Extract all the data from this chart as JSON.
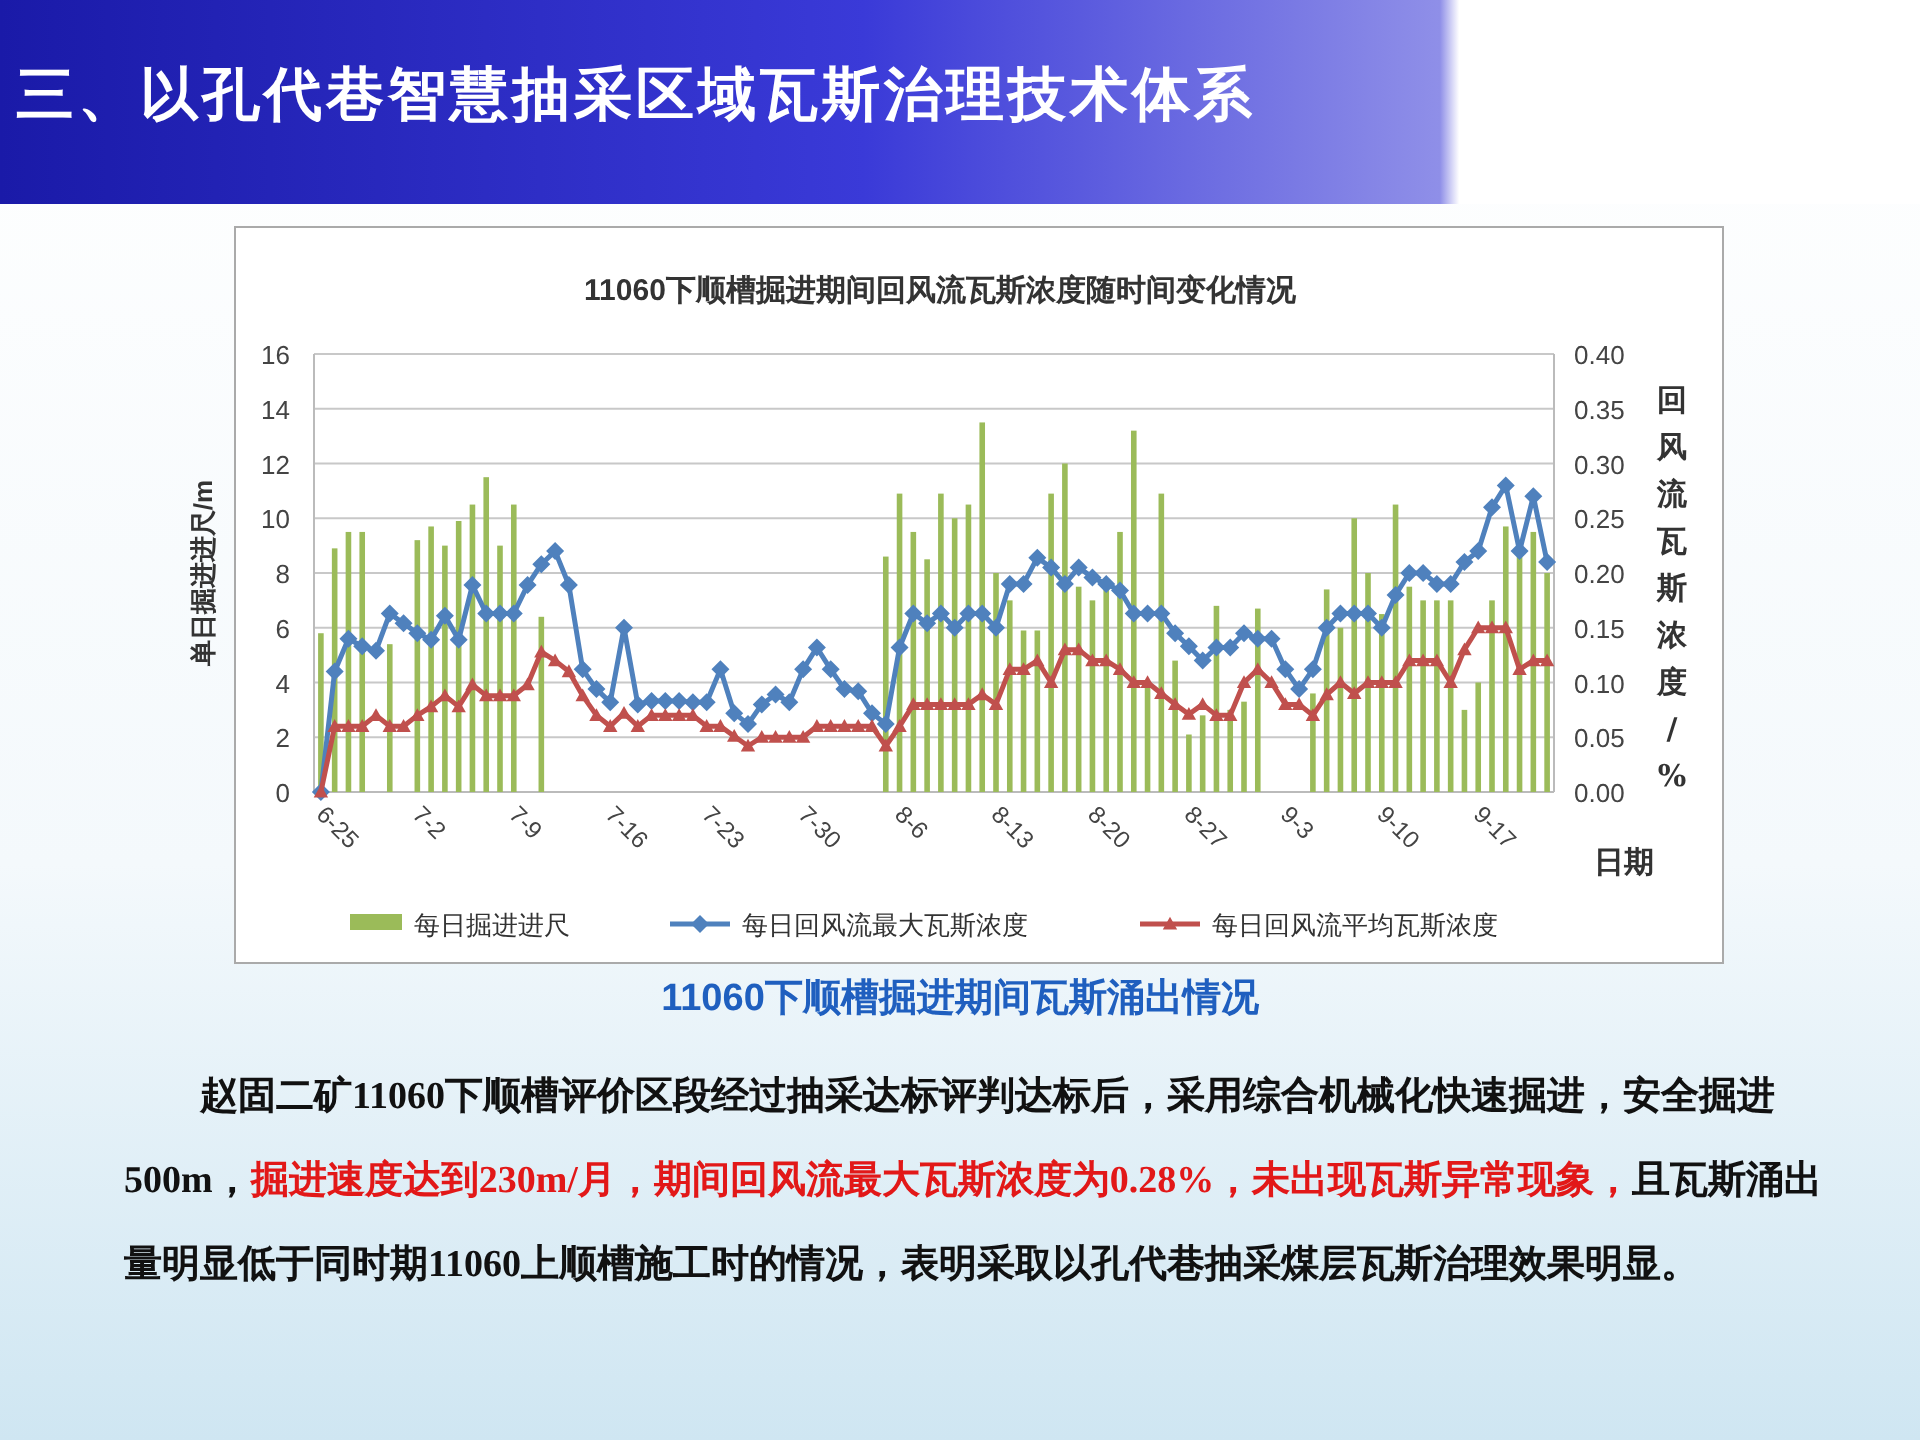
{
  "chart_data": {
    "type": "bar",
    "title": "三、以孔代巷智慧抽采区域瓦斯治理技术体系",
    "subtitle": "11060下顺槽掘进期间回风流瓦斯浓度随时间变化情况",
    "xlabel": "日期",
    "ylabel": "单日掘进进尺/m",
    "y2label": "回风流瓦斯浓度/%",
    "categories": [
      "6-25",
      null,
      null,
      null,
      null,
      null,
      null,
      "7-2",
      null,
      null,
      null,
      null,
      null,
      null,
      "7-9",
      null,
      null,
      null,
      null,
      null,
      null,
      "7-16",
      null,
      null,
      null,
      null,
      null,
      null,
      "7-23",
      null,
      null,
      null,
      null,
      null,
      null,
      "7-30",
      null,
      null,
      null,
      null,
      null,
      null,
      "8-6",
      null,
      null,
      null,
      null,
      null,
      null,
      "8-13",
      null,
      null,
      null,
      null,
      null,
      null,
      "8-20",
      null,
      null,
      null,
      null,
      null,
      null,
      "8-27",
      null,
      null,
      null,
      null,
      null,
      null,
      "9-3",
      null,
      null,
      null,
      null,
      null,
      null,
      "9-10",
      null,
      null,
      null,
      null,
      null,
      null,
      "9-17",
      null,
      null,
      null,
      null,
      null
    ],
    "series": [
      {
        "name": "每日掘进进尺",
        "color": "#9bbb59",
        "values": [
          5.8,
          8.9,
          9.5,
          9.5,
          null,
          5.4,
          null,
          9.2,
          9.7,
          9.0,
          9.9,
          10.5,
          11.5,
          9.0,
          10.5,
          null,
          6.4,
          null,
          null,
          null,
          null,
          null,
          null,
          null,
          null,
          null,
          null,
          null,
          null,
          null,
          null,
          null,
          null,
          null,
          null,
          null,
          null,
          null,
          null,
          null,
          null,
          8.6,
          10.9,
          9.5,
          8.5,
          10.9,
          10.0,
          10.5,
          13.5,
          8.0,
          7.0,
          5.9,
          5.9,
          10.9,
          12.0,
          7.5,
          7.0,
          7.5,
          9.5,
          13.2,
          4.0,
          10.9,
          4.8,
          2.1,
          2.8,
          6.8,
          3.0,
          3.3,
          6.7,
          null,
          null,
          null,
          3.6,
          7.4,
          6.0,
          10.0,
          8.0,
          6.5,
          10.5,
          7.5,
          7.0,
          7.0,
          7.0,
          3.0,
          4.0,
          7.0,
          9.7,
          8.6,
          9.5,
          8.0
        ]
      },
      {
        "name": "每日回风流最大瓦斯浓度",
        "type": "line",
        "axis": "y2",
        "marker": "diamond",
        "color": "#4f81bd",
        "values": [
          0,
          0.11,
          0.14,
          0.133,
          0.129,
          0.163,
          0.154,
          0.145,
          0.139,
          0.161,
          0.139,
          0.189,
          0.163,
          0.163,
          0.163,
          0.189,
          0.208,
          0.22,
          0.189,
          0.112,
          0.094,
          0.082,
          0.15,
          0.08,
          0.083,
          0.083,
          0.083,
          0.082,
          0.082,
          0.112,
          0.072,
          0.062,
          0.08,
          0.089,
          0.082,
          0.112,
          0.132,
          0.112,
          0.094,
          0.092,
          0.072,
          0.062,
          0.132,
          0.163,
          0.154,
          0.163,
          0.15,
          0.163,
          0.163,
          0.15,
          0.19,
          0.19,
          0.214,
          0.205,
          0.19,
          0.205,
          0.196,
          0.19,
          0.184,
          0.163,
          0.163,
          0.163,
          0.145,
          0.133,
          0.12,
          0.132,
          0.132,
          0.145,
          0.14,
          0.14,
          0.112,
          0.094,
          0.112,
          0.15,
          0.163,
          0.163,
          0.163,
          0.15,
          0.18,
          0.2,
          0.2,
          0.19,
          0.19,
          0.21,
          0.22,
          0.26,
          0.28,
          0.22,
          0.27,
          0.21
        ]
      },
      {
        "name": "每日回风流平均瓦斯浓度",
        "type": "line",
        "axis": "y2",
        "marker": "triangle",
        "color": "#c0504d",
        "values": [
          0,
          0.06,
          0.06,
          0.06,
          0.07,
          0.06,
          0.06,
          0.07,
          0.078,
          0.088,
          0.078,
          0.098,
          0.088,
          0.088,
          0.088,
          0.098,
          0.128,
          0.12,
          0.11,
          0.088,
          0.07,
          0.06,
          0.072,
          0.06,
          0.07,
          0.07,
          0.07,
          0.07,
          0.06,
          0.06,
          0.051,
          0.042,
          0.05,
          0.05,
          0.05,
          0.05,
          0.06,
          0.06,
          0.06,
          0.06,
          0.06,
          0.042,
          0.06,
          0.08,
          0.08,
          0.08,
          0.08,
          0.08,
          0.089,
          0.08,
          0.112,
          0.112,
          0.12,
          0.1,
          0.13,
          0.13,
          0.12,
          0.12,
          0.112,
          0.1,
          0.1,
          0.09,
          0.08,
          0.071,
          0.08,
          0.07,
          0.07,
          0.1,
          0.112,
          0.1,
          0.08,
          0.08,
          0.07,
          0.089,
          0.1,
          0.09,
          0.1,
          0.1,
          0.1,
          0.12,
          0.12,
          0.12,
          0.1,
          0.13,
          0.15,
          0.15,
          0.15,
          0.112,
          0.12,
          0.12
        ]
      }
    ],
    "ylim": [
      0,
      16
    ],
    "yticks": [
      0,
      2,
      4,
      6,
      8,
      10,
      12,
      14,
      16
    ],
    "y2lim": [
      0,
      0.4
    ],
    "y2ticks": [
      {
        "value": 0,
        "label": "0.00"
      },
      {
        "value": 0.05,
        "label": "0.05"
      },
      {
        "value": 0.1,
        "label": "0.10"
      },
      {
        "value": 0.15,
        "label": "0.15"
      },
      {
        "value": 0.2,
        "label": "0.20"
      },
      {
        "value": 0.25,
        "label": "0.25"
      },
      {
        "value": 0.3,
        "label": "0.30"
      },
      {
        "value": 0.35,
        "label": "0.35"
      },
      {
        "value": 0.4,
        "label": "0.40"
      }
    ],
    "grid": "y",
    "legend": "bottom",
    "annotations": [
      "11060下顺槽掘进期间瓦斯涌出情况",
      "赵固二矿11060下顺槽评价区段经过抽采达标评判达标后，采用综合机械化快速掘进，安全掘进500m，",
      "掘进速度达到230m/月，期间回风流最大瓦斯浓度为0.28%，未出现瓦斯异常现象，",
      "且瓦斯涌出量明显低于同时期11060上顺槽施工时的情况，表明采取以孔代巷抽采煤层瓦斯治理效果明显。"
    ]
  }
}
